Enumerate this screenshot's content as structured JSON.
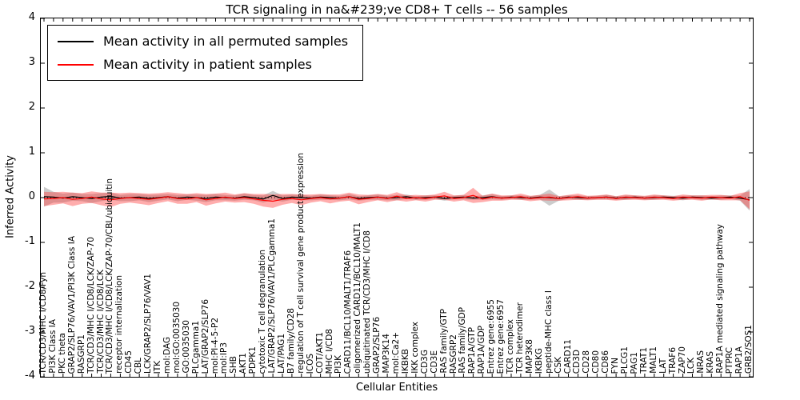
{
  "chart_data": {
    "type": "line",
    "title": "TCR signaling in na&#239;ve CD8+ T cells -- 56 samples",
    "xlabel": "Cellular Entities",
    "ylabel": "Inferred Activity",
    "ylim": [
      -4,
      4
    ],
    "yticks": [
      4,
      3,
      2,
      1,
      0,
      -1,
      -2,
      -3,
      -4
    ],
    "grid": false,
    "zero_line": true,
    "legend_position": "upper left",
    "categories": [
      "TCR/CD3/MHC I/CD8/Fyn",
      "PI3K Class IA",
      "PKC theta",
      "GRAP2/SLP76/VAV1/PI3K Class IA",
      "RASGRP1",
      "TCR/CD3/MHC I/CD8/LCK/ZAP-70",
      "TCR/CD3/MHC I/CD8/LCK",
      "TCR/CD3/MHC I/CD8/LCK/ZAP-70/CBL/ubiquitin",
      "receptor internalization",
      "CD45",
      "CBL",
      "LCK/GRAP2/SLP76/VAV1",
      "ITK",
      "mol:DAG",
      "mol:GO:0035030",
      "GO:0035030",
      "PLCgamma1",
      "LAT/GRAP2/SLP76",
      "mol:PI-4-5-P2",
      "mol:IP3",
      "SHB",
      "AKT1",
      "PDPK1",
      "cytotoxic T cell degranulation",
      "LAT/GRAP2/SLP76/VAV1/PLCgamma1",
      "LAT/PAG1",
      "B7 family/CD28",
      "regulation of T cell survival gene product expression",
      "ICOS",
      "COT/AKT1",
      "MHC I/CD8",
      "PI3K",
      "CARD11/BCL10/MALT1/TRAF6",
      "oligomerized CARD11/BCL10/MALT1",
      "ubiquitinated TCR/CD3/MHC I/CD8",
      "GRAP2/SLP76",
      "MAP3K14",
      "mol:Ca2+",
      "IKBKB",
      "IKK complex",
      "CD3G",
      "CD3E",
      "RAS family/GTP",
      "RASGRP2",
      "RAS family/GDP",
      "RAP1A/GTP",
      "RAP1A/GDP",
      "Entrez gene:6955",
      "Entrez gene:6957",
      "TCR complex",
      "TCR heterodimer",
      "MAP3K8",
      "IKBKG",
      "peptide-MHC class I",
      "CSK",
      "CARD11",
      "CD3D",
      "CD28",
      "CD80",
      "CD86",
      "FYN",
      "PLCG1",
      "PAG1",
      "TRAT1",
      "MALT1",
      "LAT",
      "TRAF6",
      "ZAP70",
      "LCK",
      "NRAS",
      "KRAS",
      "RAP1A mediated signaling pathway",
      "PTPRC",
      "RAP1A",
      "GRB2/SOS1"
    ],
    "series": [
      {
        "name": "Mean activity in all permuted samples",
        "color": "#000000",
        "band_color": "#999999",
        "band_opacity": 0.5,
        "values": [
          0.02,
          0.01,
          -0.01,
          0.02,
          0.0,
          -0.02,
          0.01,
          0.03,
          -0.01,
          0.0,
          0.01,
          -0.02,
          0.0,
          0.02,
          -0.01,
          0.01,
          0.0,
          -0.02,
          0.01,
          0.0,
          -0.01,
          0.02,
          0.0,
          -0.03,
          0.05,
          -0.02,
          0.01,
          0.0,
          -0.01,
          0.01,
          0.0,
          -0.01,
          0.02,
          -0.02,
          0.0,
          0.01,
          -0.01,
          0.0,
          0.02,
          -0.01,
          0.0,
          0.01,
          -0.02,
          0.0,
          0.01,
          -0.01,
          0.0,
          0.02,
          -0.01,
          0.01,
          0.0,
          -0.01,
          0.01,
          0.0,
          -0.02,
          0.01,
          0.0,
          -0.01,
          0.0,
          0.01,
          -0.01,
          0.0,
          0.01,
          -0.01,
          0.0,
          0.01,
          0.0,
          -0.01,
          0.01,
          0.0,
          -0.01,
          0.0,
          0.01,
          -0.01,
          -0.05
        ],
        "band": [
          0.22,
          0.12,
          0.1,
          0.09,
          0.08,
          0.1,
          0.09,
          0.08,
          0.07,
          0.08,
          0.07,
          0.08,
          0.07,
          0.06,
          0.07,
          0.06,
          0.07,
          0.08,
          0.07,
          0.06,
          0.06,
          0.07,
          0.06,
          0.08,
          0.1,
          0.07,
          0.06,
          0.06,
          0.05,
          0.06,
          0.05,
          0.05,
          0.06,
          0.05,
          0.05,
          0.06,
          0.05,
          0.06,
          0.05,
          0.04,
          0.05,
          0.04,
          0.05,
          0.04,
          0.05,
          0.04,
          0.05,
          0.06,
          0.04,
          0.04,
          0.05,
          0.04,
          0.05,
          0.18,
          0.05,
          0.04,
          0.05,
          0.04,
          0.04,
          0.05,
          0.04,
          0.05,
          0.04,
          0.04,
          0.05,
          0.04,
          0.04,
          0.05,
          0.04,
          0.05,
          0.04,
          0.05,
          0.04,
          0.06,
          0.24
        ]
      },
      {
        "name": "Mean activity in patient samples",
        "color": "#ff0000",
        "band_color": "#ff3333",
        "band_opacity": 0.4,
        "values": [
          -0.03,
          -0.02,
          0.0,
          -0.04,
          -0.02,
          0.01,
          -0.03,
          -0.05,
          -0.02,
          0.0,
          -0.02,
          -0.04,
          -0.01,
          0.02,
          -0.02,
          -0.03,
          0.0,
          -0.05,
          -0.02,
          0.01,
          -0.02,
          0.0,
          -0.03,
          -0.06,
          -0.08,
          -0.04,
          -0.02,
          -0.05,
          -0.02,
          0.0,
          -0.03,
          -0.01,
          0.02,
          -0.04,
          -0.02,
          0.01,
          -0.02,
          0.03,
          -0.02,
          0.0,
          -0.02,
          0.01,
          0.04,
          -0.02,
          0.0,
          0.05,
          -0.03,
          0.01,
          -0.01,
          0.0,
          0.02,
          -0.02,
          0.0,
          0.01,
          -0.02,
          0.0,
          0.02,
          -0.01,
          0.0,
          0.01,
          -0.02,
          0.01,
          0.0,
          -0.01,
          0.01,
          0.0,
          -0.02,
          0.01,
          0.0,
          -0.01,
          0.01,
          0.0,
          -0.01,
          0.02,
          -0.06
        ],
        "band": [
          0.16,
          0.14,
          0.13,
          0.15,
          0.12,
          0.13,
          0.14,
          0.16,
          0.12,
          0.11,
          0.12,
          0.13,
          0.11,
          0.1,
          0.12,
          0.11,
          0.1,
          0.13,
          0.11,
          0.1,
          0.09,
          0.1,
          0.11,
          0.14,
          0.15,
          0.12,
          0.1,
          0.12,
          0.09,
          0.08,
          0.1,
          0.08,
          0.09,
          0.11,
          0.08,
          0.07,
          0.08,
          0.09,
          0.07,
          0.06,
          0.07,
          0.06,
          0.09,
          0.07,
          0.06,
          0.17,
          0.07,
          0.08,
          0.06,
          0.05,
          0.07,
          0.06,
          0.06,
          0.08,
          0.05,
          0.06,
          0.07,
          0.05,
          0.05,
          0.06,
          0.05,
          0.06,
          0.05,
          0.05,
          0.06,
          0.05,
          0.05,
          0.06,
          0.05,
          0.06,
          0.05,
          0.06,
          0.05,
          0.08,
          0.2
        ]
      }
    ]
  }
}
